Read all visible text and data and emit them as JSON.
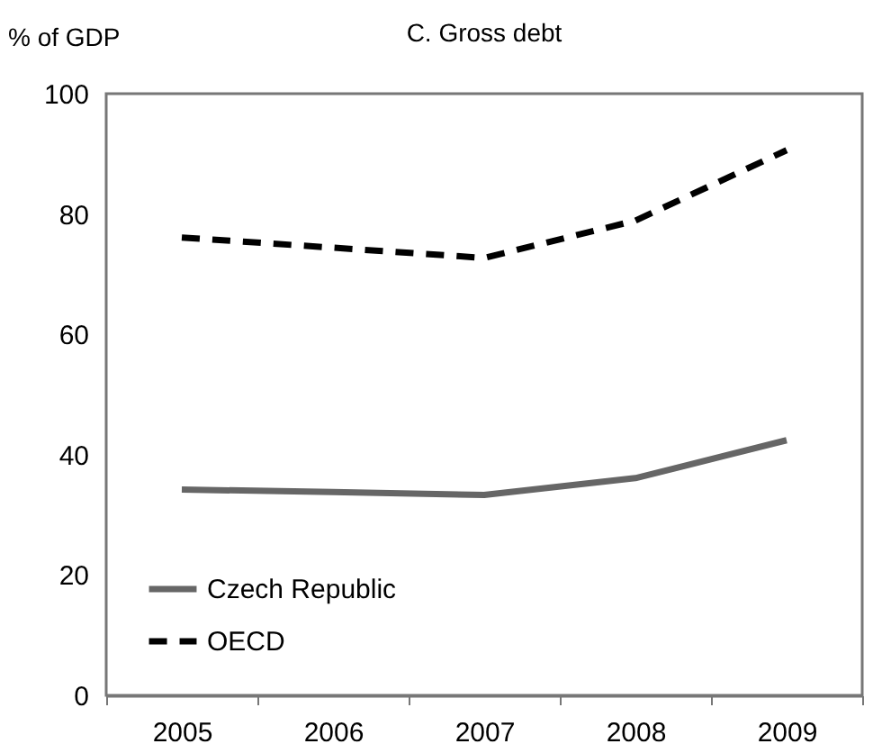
{
  "chart_data": {
    "type": "line",
    "title": "C. Gross debt",
    "ylabel": "% of GDP",
    "categories": [
      "2005",
      "2006",
      "2007",
      "2008",
      "2009"
    ],
    "series": [
      {
        "name": "Czech Republic",
        "color": "#666666",
        "line_style": "solid",
        "values": [
          34.2,
          33.8,
          33.3,
          36.1,
          42.4
        ]
      },
      {
        "name": "OECD",
        "color": "#000000",
        "line_style": "dashed",
        "values": [
          76.1,
          74.4,
          72.7,
          78.9,
          90.6
        ]
      }
    ],
    "ylim": [
      0,
      100
    ],
    "yticks": [
      0,
      20,
      40,
      60,
      80,
      100
    ],
    "grid": false,
    "legend": "bottom left"
  }
}
